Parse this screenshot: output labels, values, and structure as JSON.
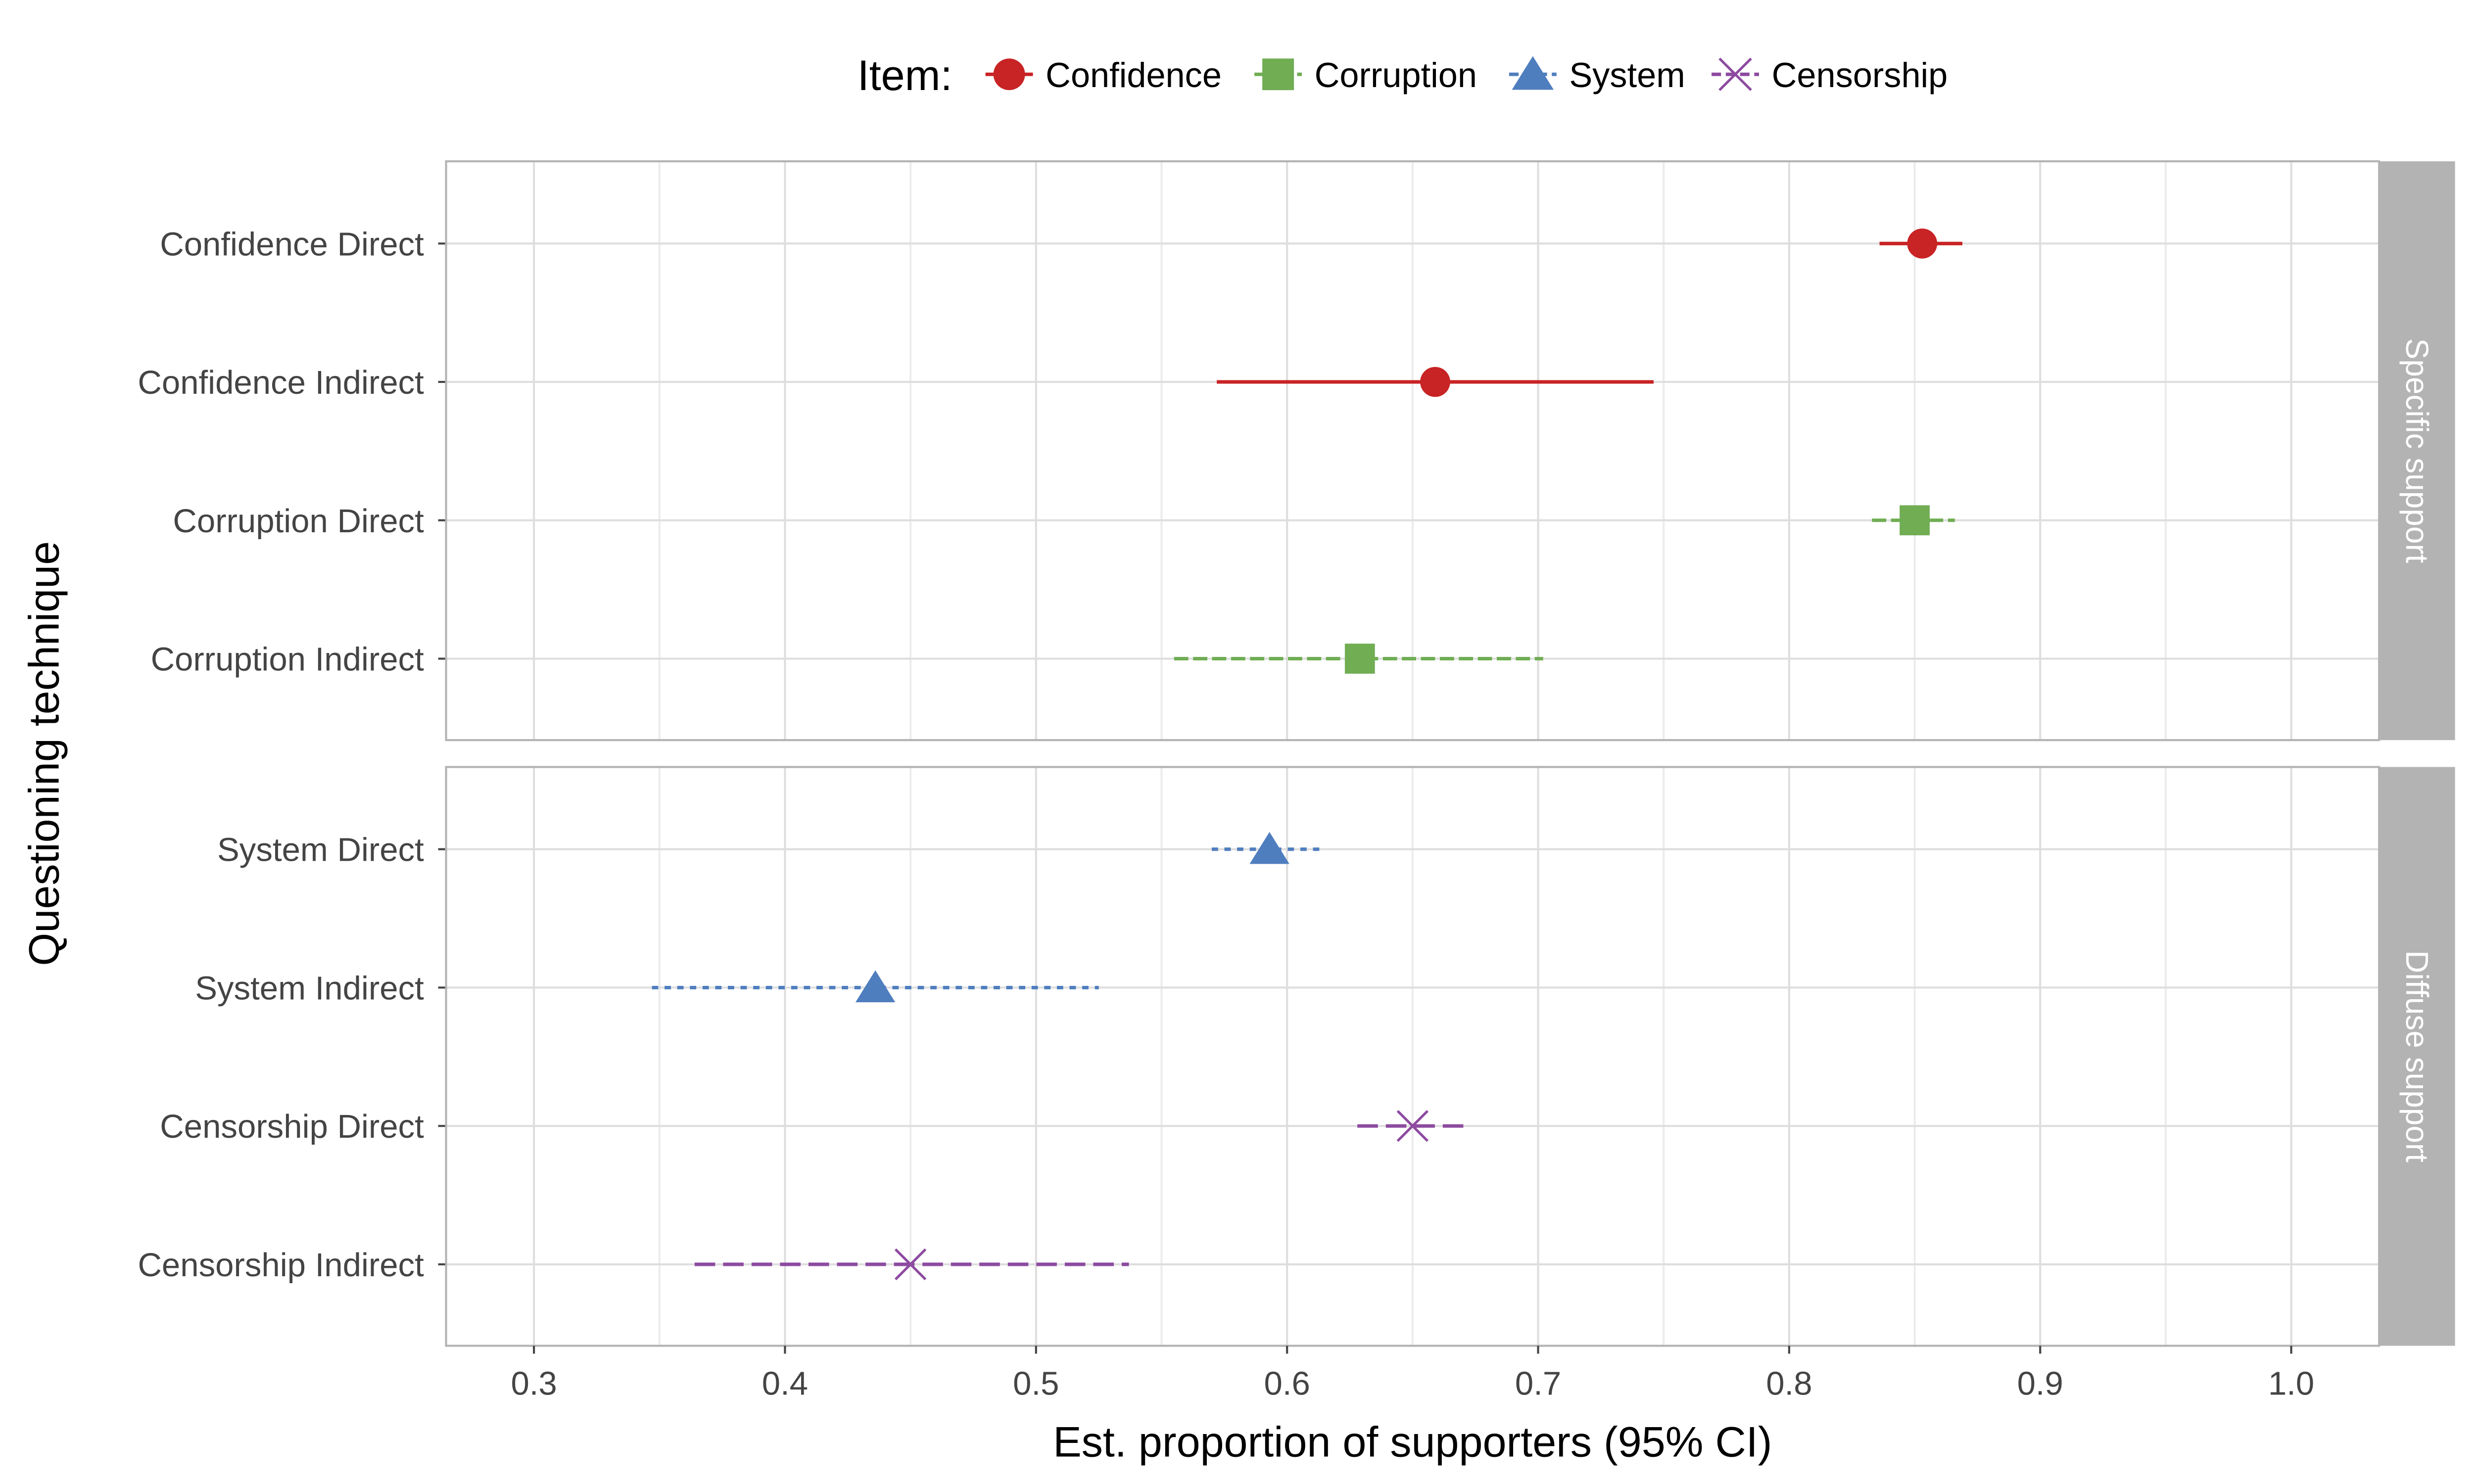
{
  "legend": {
    "title": "Item:",
    "entries": [
      {
        "name": "Confidence",
        "color": "#c82325",
        "marker": "circle",
        "dash": "solid"
      },
      {
        "name": "Corruption",
        "color": "#70ad53",
        "marker": "square",
        "dash": "longdash"
      },
      {
        "name": "System",
        "color": "#4f7ebf",
        "marker": "triangle",
        "dash": "dashed"
      },
      {
        "name": "Censorship",
        "color": "#8d4aa0",
        "marker": "cross",
        "dash": "longdash2"
      }
    ]
  },
  "chart_data": {
    "type": "dot-and-whisker",
    "xlabel": "Est. proportion of supporters (95% CI)",
    "ylabel": "Questioning technique",
    "xlim": [
      0.265,
      1.035
    ],
    "xticks": [
      "0.3",
      "0.4",
      "0.5",
      "0.6",
      "0.7",
      "0.8",
      "0.9",
      "1.0"
    ],
    "grid": true,
    "legend_position": "top",
    "panels": [
      {
        "strip": "Specific support",
        "rows": [
          {
            "label": "Confidence Direct",
            "item": "Confidence",
            "estimate": 0.853,
            "lower": 0.836,
            "upper": 0.869
          },
          {
            "label": "Confidence Indirect",
            "item": "Confidence",
            "estimate": 0.659,
            "lower": 0.572,
            "upper": 0.746
          },
          {
            "label": "Corruption Direct",
            "item": "Corruption",
            "estimate": 0.85,
            "lower": 0.833,
            "upper": 0.866
          },
          {
            "label": "Corruption Indirect",
            "item": "Corruption",
            "estimate": 0.629,
            "lower": 0.555,
            "upper": 0.702
          }
        ]
      },
      {
        "strip": "Diffuse support",
        "rows": [
          {
            "label": "System Direct",
            "item": "System",
            "estimate": 0.593,
            "lower": 0.57,
            "upper": 0.615
          },
          {
            "label": "System Indirect",
            "item": "System",
            "estimate": 0.436,
            "lower": 0.347,
            "upper": 0.525
          },
          {
            "label": "Censorship Direct",
            "item": "Censorship",
            "estimate": 0.65,
            "lower": 0.628,
            "upper": 0.671
          },
          {
            "label": "Censorship Indirect",
            "item": "Censorship",
            "estimate": 0.45,
            "lower": 0.364,
            "upper": 0.537
          }
        ]
      }
    ]
  }
}
